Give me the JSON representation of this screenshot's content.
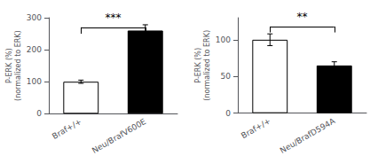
{
  "chart_data": [
    {
      "type": "bar",
      "categories": [
        "Braf+/+",
        "Neu/BrafV600E"
      ],
      "values": [
        100,
        260
      ],
      "errors": [
        5,
        18
      ],
      "colors": [
        "white",
        "black"
      ],
      "ylabel": "P-ERK (%)\n(normalized to ERK)",
      "ylim": [
        0,
        300
      ],
      "yticks": [
        0,
        100,
        200,
        300
      ],
      "grid": false,
      "annotations": [
        {
          "text": "***",
          "y": 270,
          "arm": 20
        }
      ]
    },
    {
      "type": "bar",
      "categories": [
        "Braf+/+",
        "Neu/BrafD594A"
      ],
      "values": [
        100,
        65
      ],
      "errors": [
        8,
        5
      ],
      "colors": [
        "white",
        "black"
      ],
      "ylabel": "P-ERK (%)\n(normalized to ERK)",
      "ylim": [
        0,
        130
      ],
      "yticks": [
        0,
        50,
        100
      ],
      "grid": false,
      "annotations": [
        {
          "text": "**",
          "y": 118,
          "arm": 8
        }
      ]
    }
  ]
}
